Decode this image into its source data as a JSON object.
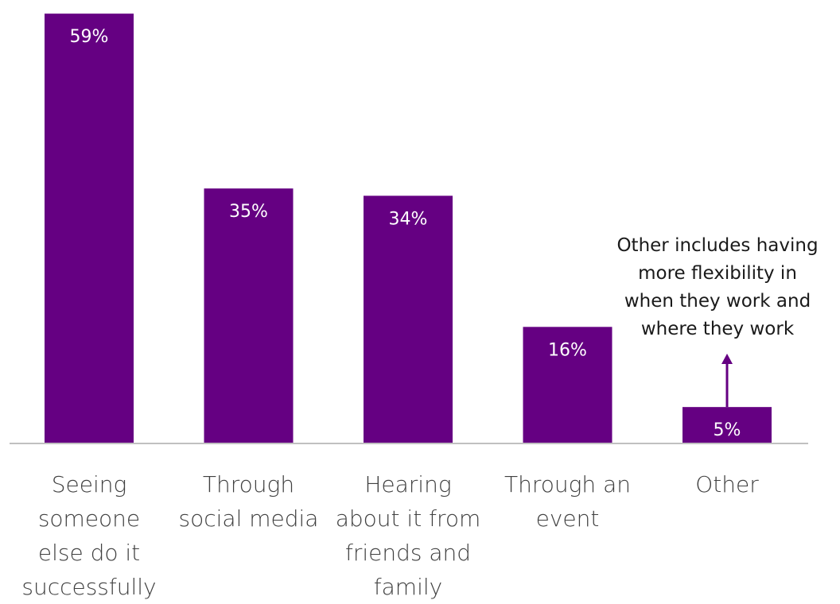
{
  "chart_data": {
    "type": "bar",
    "categories": [
      "Seeing someone else do it successfully",
      "Through social media",
      "Hearing about it from friends and family",
      "Through an event",
      "Other"
    ],
    "category_label_lines": [
      [
        "Seeing",
        "someone",
        "else do it",
        "successfully"
      ],
      [
        "Through",
        "social media"
      ],
      [
        "Hearing",
        "about it from",
        "friends and",
        "family"
      ],
      [
        "Through an",
        "event"
      ],
      [
        "Other"
      ]
    ],
    "values": [
      59,
      35,
      34,
      16,
      5
    ],
    "data_labels": [
      "59%",
      "35%",
      "34%",
      "16%",
      "5%"
    ],
    "ylim": [
      0,
      60
    ],
    "grid": false,
    "legend": "none",
    "bar_color": "#650082",
    "baseline_color": "#c0c0c0",
    "data_label_color": "#ffffff",
    "annotation": {
      "text_lines": [
        "Other includes having",
        "more flexibility in",
        "when they work and",
        "where they work"
      ],
      "target_category": "Other",
      "arrow_color": "#650082"
    }
  }
}
